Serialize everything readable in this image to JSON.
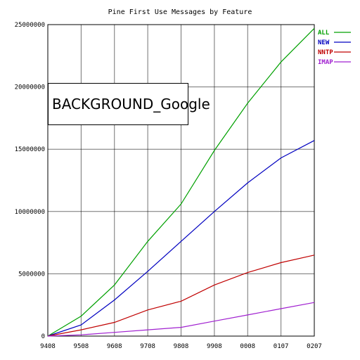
{
  "overlay": {
    "text": "BACKGROUND_Google"
  },
  "colors": {
    "background": "#ffffff",
    "axis": "#000000",
    "grid": "#000000"
  },
  "chart_data": {
    "type": "line",
    "title": "Pine First Use Messages by Feature",
    "xlabel": "",
    "ylabel": "",
    "x": [
      "9408",
      "9508",
      "9608",
      "9708",
      "9808",
      "9908",
      "0008",
      "0107",
      "0207"
    ],
    "xtick_labels": [
      "9408",
      "9508",
      "9608",
      "9708",
      "9808",
      "9908",
      "0008",
      "0107",
      "0207"
    ],
    "ytick_labels": [
      "0",
      "5000000",
      "10000000",
      "15000000",
      "20000000",
      "25000000"
    ],
    "yticks": [
      0,
      5000000,
      10000000,
      15000000,
      20000000,
      25000000
    ],
    "ylim": [
      0,
      25000000
    ],
    "grid": true,
    "legend_position": "top-right",
    "series": [
      {
        "name": "ALL",
        "color": "#00a000",
        "values": [
          0,
          1600000,
          4100000,
          7600000,
          10600000,
          14900000,
          18700000,
          22000000,
          24700000
        ]
      },
      {
        "name": "NEW",
        "color": "#0000c0",
        "values": [
          0,
          900000,
          2900000,
          5200000,
          7600000,
          10000000,
          12300000,
          14300000,
          15700000
        ]
      },
      {
        "name": "NNTP",
        "color": "#c00000",
        "values": [
          0,
          500000,
          1100000,
          2100000,
          2800000,
          4100000,
          5100000,
          5900000,
          6500000
        ]
      },
      {
        "name": "IMAP",
        "color": "#a020d0",
        "values": [
          0,
          100000,
          300000,
          500000,
          700000,
          1200000,
          1700000,
          2200000,
          2700000
        ]
      }
    ]
  }
}
